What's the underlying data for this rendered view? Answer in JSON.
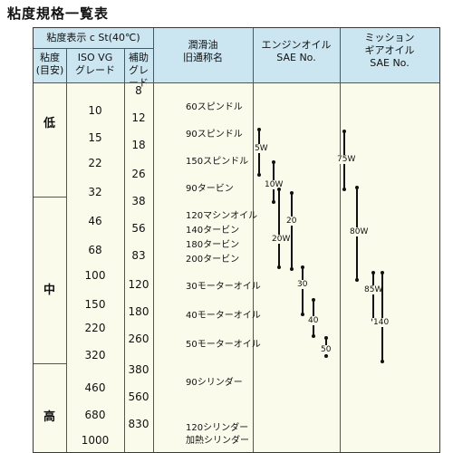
{
  "title": "粘度規格一覧表",
  "header": {
    "viscosity_label": "粘度表示 c St(40℃)",
    "grade_l1": "粘度",
    "grade_l2": "(目安)",
    "iso_l1": "ISO VG",
    "iso_l2": "グレード",
    "aux_l1": "補助",
    "aux_l2": "グレード",
    "lub_l1": "潤滑油",
    "lub_l2": "旧通称名",
    "eng_l1": "エンジンオイル",
    "eng_l2": "SAE No.",
    "gear_l1": "ミッション",
    "gear_l2": "ギアオイル",
    "gear_l3": "SAE No."
  },
  "levels": [
    "低",
    "中",
    "高"
  ],
  "iso_vg": [
    "10",
    "15",
    "22",
    "32",
    "46",
    "68",
    "100",
    "150",
    "220",
    "320",
    "460",
    "680",
    "1000"
  ],
  "aux": [
    "8",
    "12",
    "18",
    "26",
    "38",
    "56",
    "83",
    "120",
    "180",
    "260",
    "380",
    "560",
    "830"
  ],
  "lubricants": [
    "60スピンドル",
    "90スピンドル",
    "150スピンドル",
    "90タービン",
    "120マシンオイル",
    "140タービン",
    "180タービン",
    "200タービン",
    "30モーターオイル",
    "40モーターオイル",
    "50モーターオイル",
    "90シリンダー",
    "120シリンダー",
    "加熱シリンダー"
  ],
  "engine": [
    "5W",
    "10W",
    "20W",
    "20",
    "30",
    "40",
    "50"
  ],
  "gear": [
    "75W",
    "80W",
    "85W",
    "140"
  ]
}
